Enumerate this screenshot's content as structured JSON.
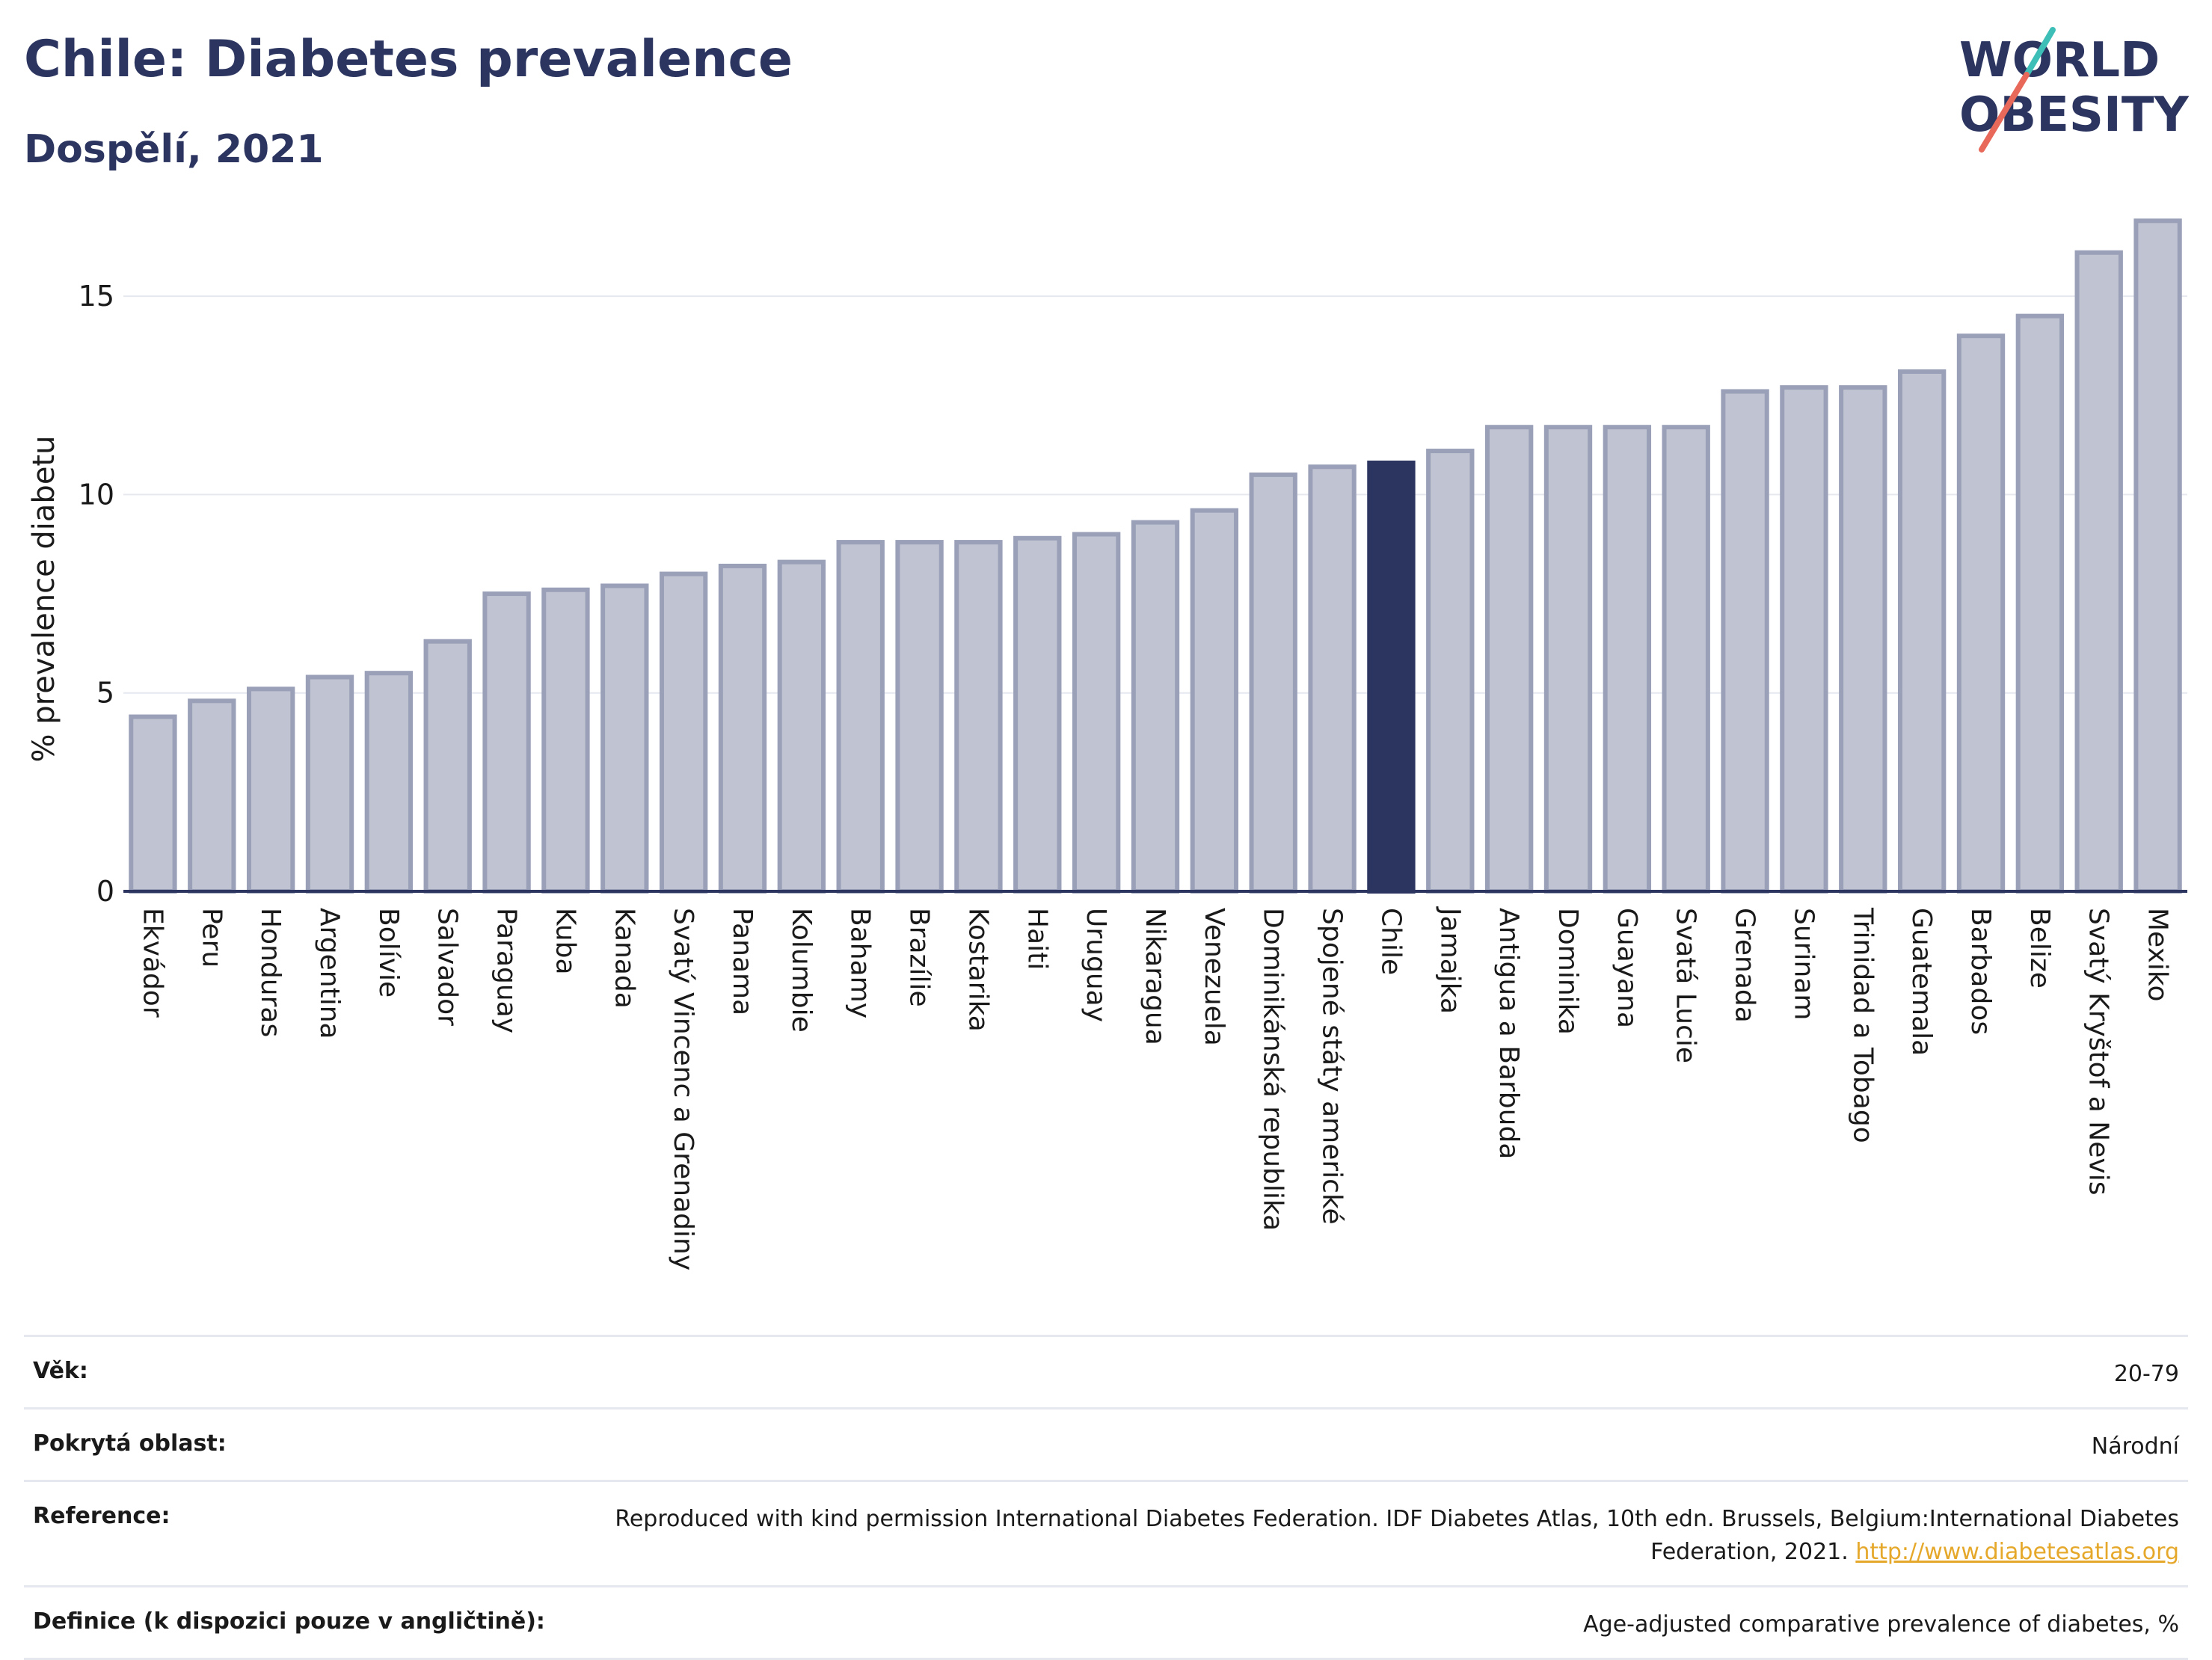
{
  "header": {
    "title": "Chile: Diabetes prevalence",
    "subtitle": "Dospělí, 2021"
  },
  "logo": {
    "line1": "WORLD",
    "line2": "OBESITY",
    "accent_teal": "#3dbfb8",
    "accent_red": "#e8685a"
  },
  "colors": {
    "bar_fill": "#c0c3d1",
    "bar_stroke": "#9aa0b8",
    "highlight": "#2b3560",
    "grid": "#e6e8ef",
    "axis": "#2b3560"
  },
  "chart_data": {
    "type": "bar",
    "ylabel": "% prevalence diabetu",
    "ylim": [
      0,
      17
    ],
    "yticks": [
      0,
      5,
      10,
      15
    ],
    "grid": true,
    "highlight_category": "Chile",
    "categories": [
      "Ekvádor",
      "Peru",
      "Honduras",
      "Argentina",
      "Bolívie",
      "Salvador",
      "Paraguay",
      "Kuba",
      "Kanada",
      "Svatý Vincenc a Grenadiny",
      "Panama",
      "Kolumbie",
      "Bahamy",
      "Brazílie",
      "Kostarika",
      "Haiti",
      "Uruguay",
      "Nikaragua",
      "Venezuela",
      "Dominikánská republika",
      "Spojené státy americké",
      "Chile",
      "Jamajka",
      "Antigua a Barbuda",
      "Dominika",
      "Guayana",
      "Svatá Lucie",
      "Grenada",
      "Surinam",
      "Trinidad a Tobago",
      "Guatemala",
      "Barbados",
      "Belize",
      "Svatý Kryštof a Nevis",
      "Mexiko"
    ],
    "values": [
      4.4,
      4.8,
      5.1,
      5.4,
      5.5,
      6.3,
      7.5,
      7.6,
      7.7,
      8.0,
      8.2,
      8.3,
      8.8,
      8.8,
      8.8,
      8.9,
      9.0,
      9.3,
      9.6,
      10.5,
      10.7,
      10.8,
      11.1,
      11.7,
      11.7,
      11.7,
      11.7,
      12.6,
      12.7,
      12.7,
      13.1,
      14.0,
      14.5,
      16.1,
      16.9
    ]
  },
  "info": [
    {
      "key": "Věk:",
      "value": "20-79"
    },
    {
      "key": "Pokrytá oblast:",
      "value": "Národní"
    },
    {
      "key": "Reference:",
      "value": "Reproduced with kind permission International Diabetes Federation.  IDF Diabetes Atlas, 10th edn. Brussels, Belgium:International Diabetes Federation, 2021.",
      "link": "http://www.diabetesatlas.org"
    },
    {
      "key": "Definice (k dispozici pouze v angličtině):",
      "value": "Age-adjusted comparative prevalence of diabetes, %"
    }
  ]
}
